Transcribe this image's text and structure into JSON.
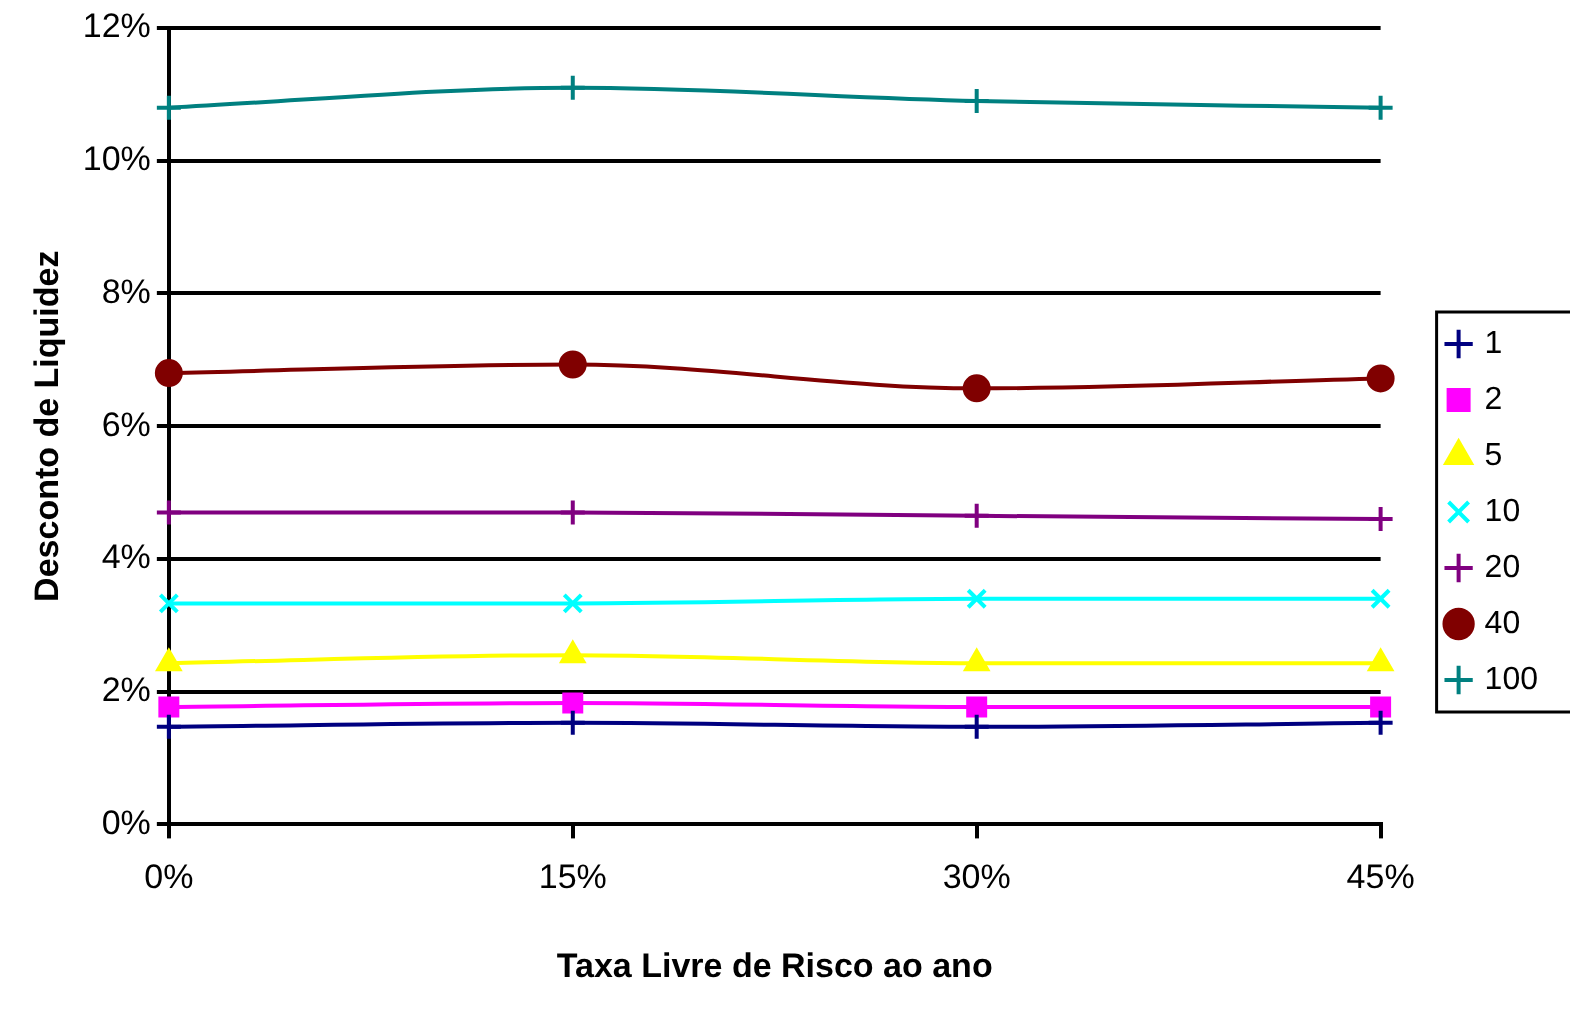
{
  "chart_data": {
    "type": "line",
    "xlabel": "Taxa Livre de Risco ao ano",
    "ylabel": "Desconto de Liquidez",
    "x": [
      0,
      15,
      30,
      45
    ],
    "xlim": [
      0,
      45
    ],
    "xticks": [
      {
        "value": 0,
        "label": "0%"
      },
      {
        "value": 15,
        "label": "15%"
      },
      {
        "value": 30,
        "label": "30%"
      },
      {
        "value": 45,
        "label": "45%"
      }
    ],
    "ylim": [
      0,
      12
    ],
    "yticks": [
      {
        "value": 0,
        "label": "0%"
      },
      {
        "value": 2,
        "label": "2%"
      },
      {
        "value": 4,
        "label": "4%"
      },
      {
        "value": 6,
        "label": "6%"
      },
      {
        "value": 8,
        "label": "8%"
      },
      {
        "value": 10,
        "label": "10%"
      },
      {
        "value": 12,
        "label": "12%"
      }
    ],
    "grid": "y",
    "legend": "right",
    "line_style": "solid",
    "series": [
      {
        "name": "1",
        "color": "#000080",
        "marker": "cross",
        "values": [
          1.47,
          1.53,
          1.47,
          1.53
        ]
      },
      {
        "name": "2",
        "color": "#ff00ff",
        "marker": "square",
        "values": [
          1.77,
          1.83,
          1.77,
          1.77
        ]
      },
      {
        "name": "5",
        "color": "#ffff00",
        "marker": "triangle",
        "values": [
          2.43,
          2.55,
          2.43,
          2.43
        ]
      },
      {
        "name": "10",
        "color": "#00ffff",
        "marker": "x",
        "values": [
          3.33,
          3.33,
          3.4,
          3.4
        ]
      },
      {
        "name": "20",
        "color": "#800080",
        "marker": "cross",
        "values": [
          4.7,
          4.7,
          4.65,
          4.6
        ]
      },
      {
        "name": "40",
        "color": "#800000",
        "marker": "circle",
        "values": [
          6.8,
          6.93,
          6.57,
          6.72
        ]
      },
      {
        "name": "100",
        "color": "#008080",
        "marker": "cross",
        "values": [
          10.8,
          11.1,
          10.9,
          10.8
        ]
      }
    ]
  }
}
